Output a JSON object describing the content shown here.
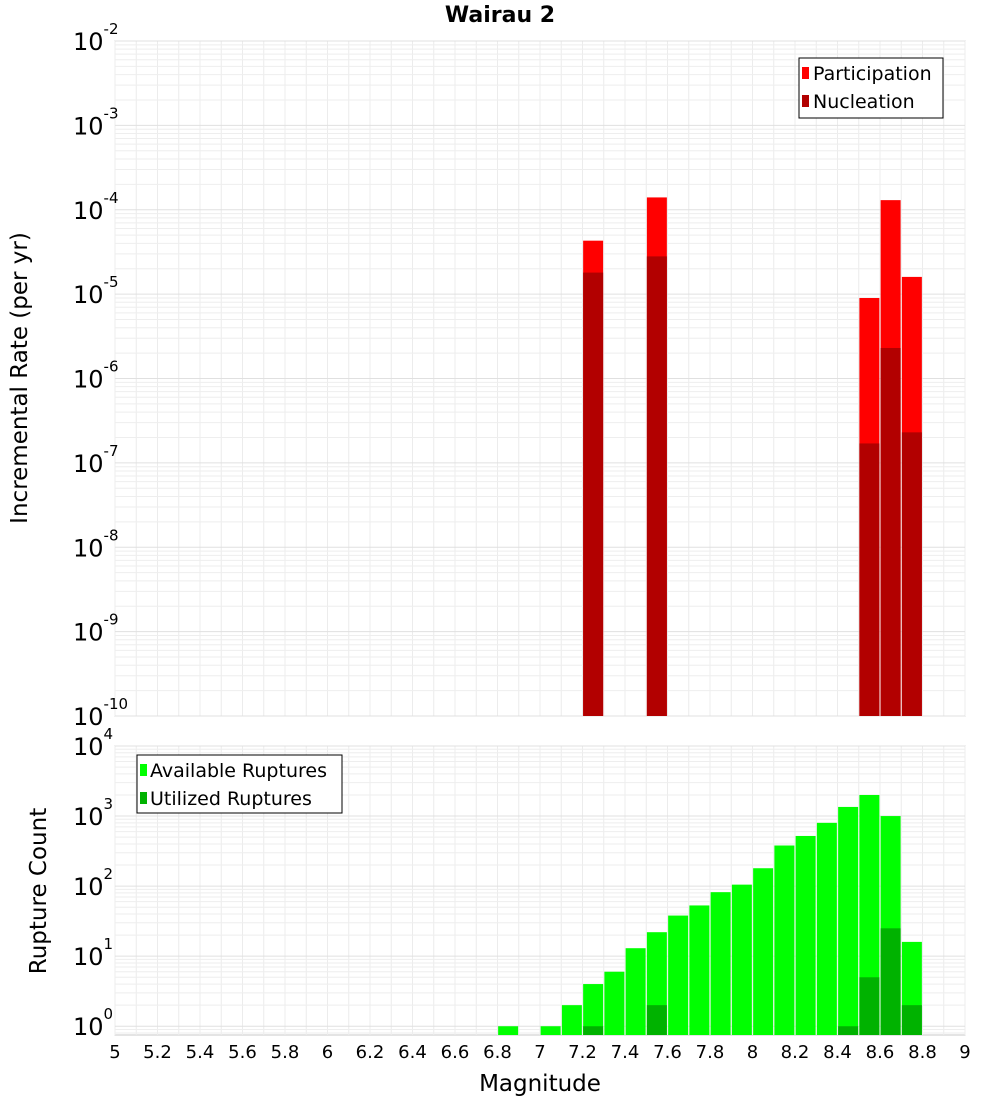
{
  "chart_data": [
    {
      "type": "bar",
      "title": "Wairau 2",
      "xlabel": "",
      "ylabel": "Incremental Rate (per yr)",
      "yscale": "log",
      "xlim": [
        5,
        9
      ],
      "ylim": [
        1e-10,
        0.01
      ],
      "y_ticks": [
        {
          "base": "10",
          "exp": "-2",
          "value": 0.01
        },
        {
          "base": "10",
          "exp": "-3",
          "value": 0.001
        },
        {
          "base": "10",
          "exp": "-4",
          "value": 0.0001
        },
        {
          "base": "10",
          "exp": "-5",
          "value": 1e-05
        },
        {
          "base": "10",
          "exp": "-6",
          "value": 1e-06
        },
        {
          "base": "10",
          "exp": "-7",
          "value": 1e-07
        },
        {
          "base": "10",
          "exp": "-8",
          "value": 1e-08
        },
        {
          "base": "10",
          "exp": "-9",
          "value": 1e-09
        },
        {
          "base": "10",
          "exp": "-10",
          "value": 1e-10
        }
      ],
      "grid": true,
      "legend_position": "top-right",
      "series": [
        {
          "name": "Participation",
          "color": "#ff0000",
          "x": [
            7.25,
            7.55,
            8.55,
            8.65,
            8.75
          ],
          "values": [
            4.3e-05,
            0.00014,
            9e-06,
            0.00013,
            1.6e-05
          ]
        },
        {
          "name": "Nucleation",
          "color": "#b20000",
          "x": [
            7.25,
            7.55,
            8.55,
            8.65,
            8.75
          ],
          "values": [
            1.8e-05,
            2.8e-05,
            1.7e-07,
            2.3e-06,
            2.3e-07
          ]
        }
      ]
    },
    {
      "type": "bar",
      "title": "",
      "xlabel": "Magnitude",
      "ylabel": "Rupture Count",
      "yscale": "log",
      "xlim": [
        5,
        9
      ],
      "ylim": [
        0.75,
        10000
      ],
      "x_ticks": [
        "5",
        "5.2",
        "5.4",
        "5.6",
        "5.8",
        "6",
        "6.2",
        "6.4",
        "6.6",
        "6.8",
        "7",
        "7.2",
        "7.4",
        "7.6",
        "7.8",
        "8",
        "8.2",
        "8.4",
        "8.6",
        "8.8",
        "9"
      ],
      "y_ticks": [
        {
          "base": "10",
          "exp": "4",
          "value": 10000
        },
        {
          "base": "10",
          "exp": "3",
          "value": 1000
        },
        {
          "base": "10",
          "exp": "2",
          "value": 100
        },
        {
          "base": "10",
          "exp": "1",
          "value": 10
        },
        {
          "base": "10",
          "exp": "0",
          "value": 1
        }
      ],
      "grid": true,
      "legend_position": "top-left",
      "series": [
        {
          "name": "Available Ruptures",
          "color": "#00ff00",
          "x": [
            6.85,
            7.05,
            7.15,
            7.25,
            7.35,
            7.45,
            7.55,
            7.65,
            7.75,
            7.85,
            7.95,
            8.05,
            8.15,
            8.25,
            8.35,
            8.45,
            8.55,
            8.65,
            8.75
          ],
          "values": [
            1,
            1,
            2,
            4,
            6,
            13,
            22,
            38,
            53,
            82,
            105,
            180,
            380,
            520,
            800,
            1350,
            2000,
            1000,
            16
          ]
        },
        {
          "name": "Utilized Ruptures",
          "color": "#00b200",
          "x": [
            7.25,
            7.55,
            8.45,
            8.55,
            8.65,
            8.75
          ],
          "values": [
            1,
            2,
            1,
            5,
            25,
            2
          ]
        }
      ]
    }
  ]
}
